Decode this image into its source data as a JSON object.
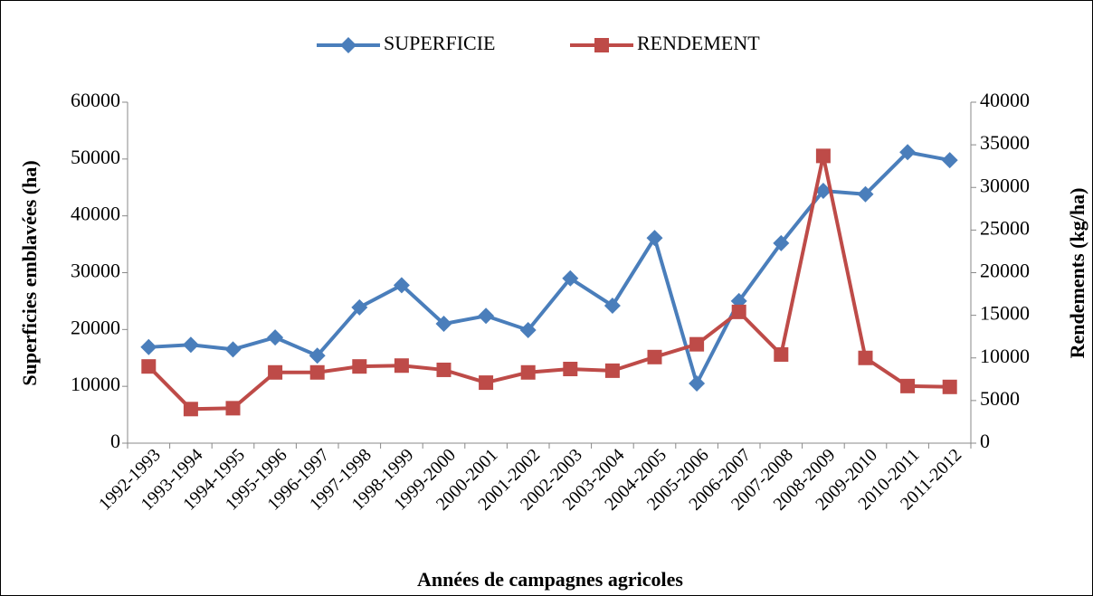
{
  "chart_data": {
    "type": "line",
    "xlabel": "Années de campagnes agricoles",
    "ylabel": "Superficies emblavées (ha)",
    "y2label": "Rendements (kg/ha)",
    "categories": [
      "1992-1993",
      "1993-1994",
      "1994-1995",
      "1995-1996",
      "1996-1997",
      "1997-1998",
      "1998-1999",
      "1999-2000",
      "2000-2001",
      "2001-2002",
      "2002-2003",
      "2003-2004",
      "2004-2005",
      "2005-2006",
      "2006-2007",
      "2007-2008",
      "2008-2009",
      "2009-2010",
      "2010-2011",
      "2011-2012"
    ],
    "series": [
      {
        "name": "SUPERFICIE",
        "color": "#4a7ebb",
        "marker": "diamond",
        "values": [
          16900,
          17300,
          16500,
          18600,
          15400,
          23900,
          27800,
          21000,
          22400,
          19900,
          29000,
          24200,
          36100,
          10500,
          25000,
          35200,
          44400,
          43800,
          51200,
          49800
        ]
      },
      {
        "name": "RENDEMENT",
        "color": "#be4b48",
        "marker": "square",
        "axis": "y2",
        "values": [
          9000,
          4000,
          4100,
          8300,
          8300,
          9000,
          9100,
          8600,
          7100,
          8300,
          8700,
          8500,
          10100,
          11600,
          15400,
          10400,
          33700,
          10000,
          6700,
          6600
        ]
      }
    ],
    "ylim": [
      0,
      60000
    ],
    "yticks": [
      0,
      10000,
      20000,
      30000,
      40000,
      50000,
      60000
    ],
    "y2lim": [
      0,
      40000
    ],
    "y2ticks": [
      0,
      5000,
      10000,
      15000,
      20000,
      25000,
      30000,
      35000,
      40000
    ],
    "legend": "top"
  }
}
